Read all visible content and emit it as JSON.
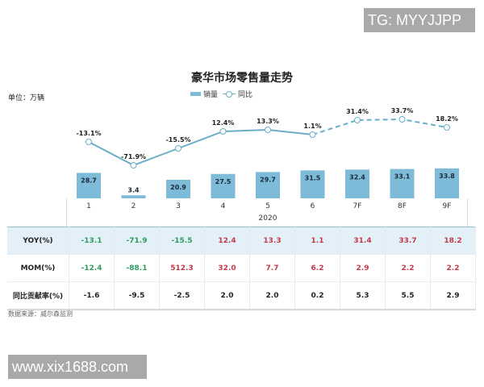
{
  "watermarks": {
    "top_right": "TG: MYYJJPP",
    "bottom_left": "www.xix1688.com"
  },
  "chart_data": {
    "type": "bar",
    "title": "豪华市场零售量走势",
    "unit_label": "单位：万辆",
    "xlabel": "2020",
    "ylabel": "",
    "categories": [
      "1",
      "2",
      "3",
      "4",
      "5",
      "6",
      "7F",
      "8F",
      "9F"
    ],
    "legend": [
      "销量",
      "同比"
    ],
    "legend_position": "top",
    "grid": false,
    "series": [
      {
        "name": "销量",
        "type": "bar",
        "values": [
          28.7,
          3.4,
          20.9,
          27.5,
          29.7,
          31.5,
          32.4,
          33.1,
          33.8
        ],
        "color": "#7dbbd8"
      },
      {
        "name": "同比",
        "type": "line",
        "values": [
          -13.1,
          -71.9,
          -15.5,
          12.4,
          13.3,
          1.1,
          31.4,
          33.7,
          18.2
        ],
        "labels": [
          "-13.1%",
          "-71.9%",
          "-15.5%",
          "12.4%",
          "13.3%",
          "1.1%",
          "31.4%",
          "33.7%",
          "18.2%"
        ],
        "color": "#6aaec8",
        "dashed_from_index": 5
      }
    ],
    "table": {
      "rows": [
        {
          "label": "YOY(%)",
          "values": [
            "-13.1",
            "-71.9",
            "-15.5",
            "12.4",
            "13.3",
            "1.1",
            "31.4",
            "33.7",
            "18.2"
          ]
        },
        {
          "label": "MOM(%)",
          "values": [
            "-12.4",
            "-88.1",
            "512.3",
            "32.0",
            "7.7",
            "6.2",
            "2.9",
            "2.2",
            "2.2"
          ]
        },
        {
          "label": "同比贡献率(%)",
          "values": [
            "-1.6",
            "-9.5",
            "-2.5",
            "2.0",
            "2.0",
            "0.2",
            "5.3",
            "5.5",
            "2.9"
          ]
        }
      ]
    },
    "source": "数据来源：威尔森监测"
  },
  "colors": {
    "bar": "#7dbbd8",
    "line": "#6aaec8",
    "negative": "#2e9a5e",
    "positive": "#c23a4a",
    "header_row_bg": "#e4f0f8"
  }
}
